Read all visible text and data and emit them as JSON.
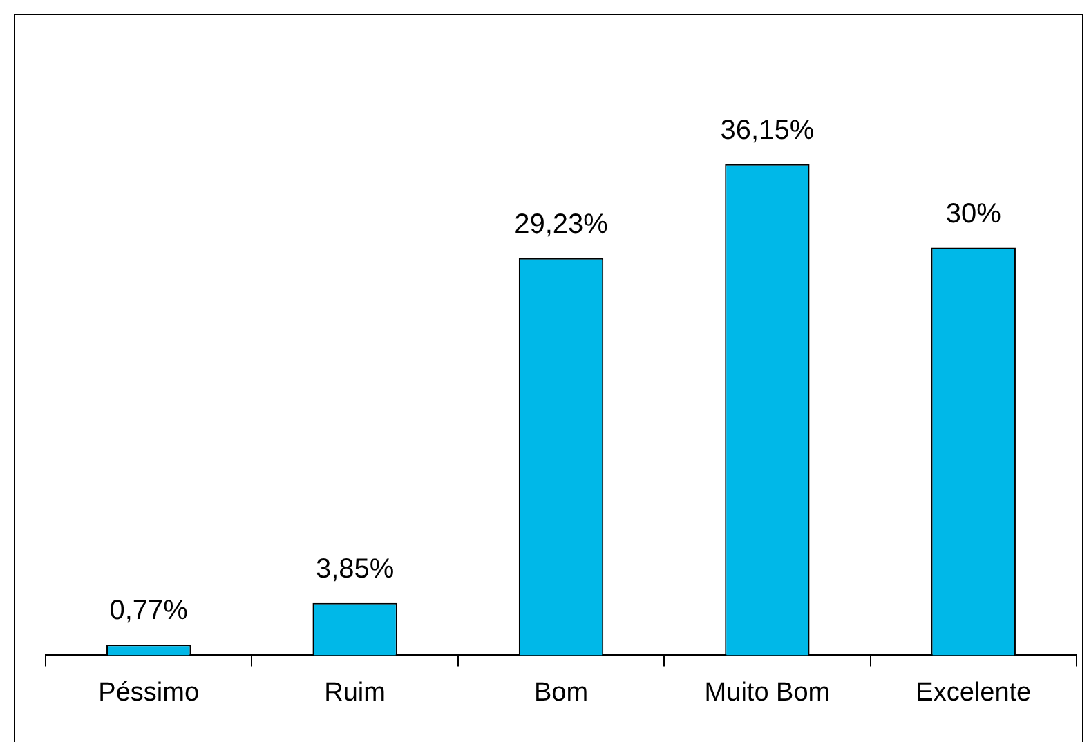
{
  "chart_data": {
    "type": "bar",
    "categories": [
      "Péssimo",
      "Ruim",
      "Bom",
      "Muito Bom",
      "Excelente"
    ],
    "values": [
      0.77,
      3.85,
      29.23,
      36.15,
      30
    ],
    "value_labels": [
      "0,77%",
      "3,85%",
      "29,23%",
      "36,15%",
      "30%"
    ],
    "color": "#00b8e8",
    "grid": false,
    "legend": false
  }
}
